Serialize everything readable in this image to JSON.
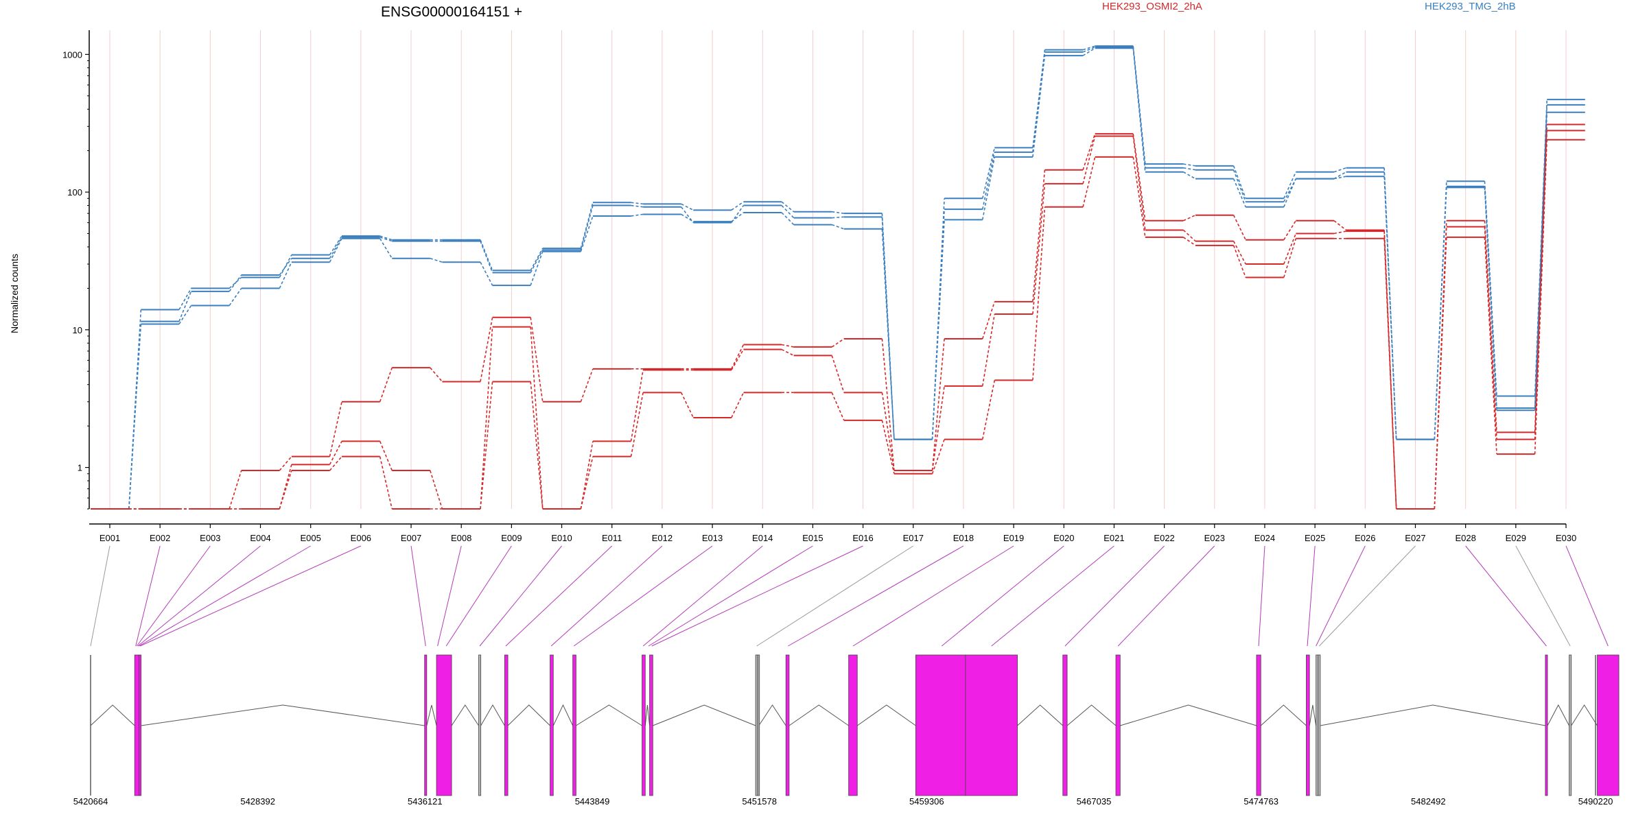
{
  "chart_data": {
    "type": "line",
    "title": "ENSG00000164151 +",
    "ylabel": "Normalized counts",
    "yscale": "log",
    "ylim": [
      0.5,
      1500
    ],
    "yticks": [
      "1",
      "10",
      "100",
      "1000"
    ],
    "ytick_values": [
      1,
      10,
      100,
      1000
    ],
    "categories": [
      "E001",
      "E002",
      "E003",
      "E004",
      "E005",
      "E006",
      "E007",
      "E008",
      "E009",
      "E010",
      "E011",
      "E012",
      "E013",
      "E014",
      "E015",
      "E016",
      "E017",
      "E018",
      "E019",
      "E020",
      "E021",
      "E022",
      "E023",
      "E024",
      "E025",
      "E026",
      "E027",
      "E028",
      "E029",
      "E030"
    ],
    "legend": [
      {
        "name": "HEK293_OSMI2_2hA",
        "color": "#d62728"
      },
      {
        "name": "HEK293_TMG_2hB",
        "color": "#3a7fbf"
      }
    ],
    "series": [
      {
        "group": "HEK293_TMG_2hB",
        "color": "#3a7fbf",
        "values": [
          0.5,
          14,
          20,
          24,
          35,
          48,
          45,
          45,
          27,
          39,
          84,
          82,
          74,
          85,
          72,
          70,
          1.6,
          90,
          210,
          1080,
          1150,
          160,
          155,
          90,
          140,
          150,
          1.6,
          120,
          3.3,
          470
        ]
      },
      {
        "group": "HEK293_TMG_2hB",
        "color": "#3a7fbf",
        "values": [
          0.5,
          11.5,
          19,
          25,
          33,
          47,
          44,
          44,
          26,
          38,
          80,
          78,
          60,
          80,
          65,
          66,
          1.6,
          75,
          195,
          1040,
          1130,
          150,
          145,
          85,
          125,
          140,
          1.6,
          110,
          2.7,
          430
        ]
      },
      {
        "group": "HEK293_TMG_2hB",
        "color": "#3a7fbf",
        "values": [
          0.5,
          11,
          15,
          20,
          31,
          46,
          33,
          31,
          21,
          37,
          67,
          69,
          61,
          71,
          58,
          54,
          1.6,
          63,
          180,
          980,
          1110,
          140,
          125,
          78,
          125,
          130,
          1.6,
          108,
          2.6,
          380
        ]
      },
      {
        "group": "HEK293_OSMI2_2hA",
        "color": "#d62728",
        "values": [
          0.5,
          0.5,
          0.5,
          0.95,
          1.2,
          3,
          5.3,
          4.2,
          12.3,
          3,
          5.2,
          5.2,
          5.2,
          7.8,
          7.5,
          8.6,
          0.95,
          8.6,
          16,
          145,
          265,
          62,
          68,
          45,
          62,
          53,
          0.5,
          62,
          1.8,
          310
        ]
      },
      {
        "group": "HEK293_OSMI2_2hA",
        "color": "#d62728",
        "values": [
          0.5,
          0.5,
          0.5,
          0.5,
          1.05,
          1.55,
          0.95,
          0.5,
          10.5,
          0.5,
          1.55,
          5.1,
          5.1,
          7.2,
          6.5,
          3.5,
          0.95,
          3.9,
          13,
          115,
          255,
          53,
          44,
          30,
          50,
          52,
          0.5,
          56,
          1.6,
          280
        ]
      },
      {
        "group": "HEK293_OSMI2_2hA",
        "color": "#d62728",
        "values": [
          0.5,
          0.5,
          0.5,
          0.5,
          0.95,
          1.2,
          0.5,
          0.5,
          4.2,
          0.5,
          1.2,
          3.5,
          2.3,
          3.5,
          3.5,
          2.2,
          0.9,
          1.6,
          4.3,
          78,
          180,
          47,
          41,
          24,
          46,
          46,
          0.5,
          47,
          1.25,
          240
        ]
      }
    ],
    "gene_model": {
      "coordinate_ticks": [
        "5420664",
        "5428392",
        "5436121",
        "5443849",
        "5451578",
        "5459306",
        "5467035",
        "5474763",
        "5482492",
        "5490220"
      ],
      "coordinate_range": [
        5420664,
        5490220
      ],
      "exons": [
        {
          "start": 5422700,
          "end": 5422900,
          "tested": true
        },
        {
          "start": 5422900,
          "end": 5423000,
          "tested": true
        },
        {
          "start": 5436100,
          "end": 5436200,
          "tested": true
        },
        {
          "start": 5436650,
          "end": 5437350,
          "tested": true
        },
        {
          "start": 5438600,
          "end": 5438700,
          "tested": false
        },
        {
          "start": 5439800,
          "end": 5439950,
          "tested": true
        },
        {
          "start": 5441900,
          "end": 5442050,
          "tested": true
        },
        {
          "start": 5442950,
          "end": 5443100,
          "tested": true
        },
        {
          "start": 5446150,
          "end": 5446300,
          "tested": true
        },
        {
          "start": 5446500,
          "end": 5446650,
          "tested": true
        },
        {
          "start": 5451400,
          "end": 5451500,
          "tested": false
        },
        {
          "start": 5451500,
          "end": 5451550,
          "tested": false
        },
        {
          "start": 5452800,
          "end": 5452950,
          "tested": true
        },
        {
          "start": 5455700,
          "end": 5456100,
          "tested": true
        },
        {
          "start": 5458800,
          "end": 5461100,
          "tested": true
        },
        {
          "start": 5461100,
          "end": 5463500,
          "tested": true
        },
        {
          "start": 5465600,
          "end": 5465800,
          "tested": true
        },
        {
          "start": 5468050,
          "end": 5468250,
          "tested": true
        },
        {
          "start": 5474550,
          "end": 5474750,
          "tested": true
        },
        {
          "start": 5476850,
          "end": 5477000,
          "tested": true
        },
        {
          "start": 5477300,
          "end": 5477400,
          "tested": false
        },
        {
          "start": 5477400,
          "end": 5477500,
          "tested": false
        },
        {
          "start": 5487900,
          "end": 5488000,
          "tested": true
        },
        {
          "start": 5489000,
          "end": 5489100,
          "tested": false
        },
        {
          "start": 5490300,
          "end": 5491300,
          "tested": true
        }
      ],
      "links": [
        {
          "bin": "E001",
          "pos": 5420664,
          "tested": false
        },
        {
          "bin": "E002",
          "pos": 5422750,
          "tested": true
        },
        {
          "bin": "E003",
          "pos": 5422800,
          "tested": true
        },
        {
          "bin": "E004",
          "pos": 5422850,
          "tested": true
        },
        {
          "bin": "E005",
          "pos": 5422900,
          "tested": true
        },
        {
          "bin": "E006",
          "pos": 5422950,
          "tested": true
        },
        {
          "bin": "E007",
          "pos": 5436150,
          "tested": true
        },
        {
          "bin": "E008",
          "pos": 5436700,
          "tested": true
        },
        {
          "bin": "E009",
          "pos": 5437100,
          "tested": true
        },
        {
          "bin": "E010",
          "pos": 5438650,
          "tested": true
        },
        {
          "bin": "E011",
          "pos": 5439850,
          "tested": true
        },
        {
          "bin": "E012",
          "pos": 5441950,
          "tested": true
        },
        {
          "bin": "E013",
          "pos": 5443000,
          "tested": true
        },
        {
          "bin": "E014",
          "pos": 5446200,
          "tested": true
        },
        {
          "bin": "E015",
          "pos": 5446450,
          "tested": true
        },
        {
          "bin": "E016",
          "pos": 5446600,
          "tested": true
        },
        {
          "bin": "E017",
          "pos": 5451450,
          "tested": false
        },
        {
          "bin": "E018",
          "pos": 5452900,
          "tested": true
        },
        {
          "bin": "E019",
          "pos": 5455900,
          "tested": true
        },
        {
          "bin": "E020",
          "pos": 5460000,
          "tested": true
        },
        {
          "bin": "E021",
          "pos": 5462300,
          "tested": true
        },
        {
          "bin": "E022",
          "pos": 5465700,
          "tested": true
        },
        {
          "bin": "E023",
          "pos": 5468150,
          "tested": true
        },
        {
          "bin": "E024",
          "pos": 5474650,
          "tested": true
        },
        {
          "bin": "E025",
          "pos": 5476900,
          "tested": true
        },
        {
          "bin": "E026",
          "pos": 5477300,
          "tested": true
        },
        {
          "bin": "E027",
          "pos": 5477450,
          "tested": false
        },
        {
          "bin": "E028",
          "pos": 5487950,
          "tested": true
        },
        {
          "bin": "E029",
          "pos": 5489050,
          "tested": false
        },
        {
          "bin": "E030",
          "pos": 5490800,
          "tested": true
        }
      ]
    },
    "colors": {
      "group_a": "#d62728",
      "group_b": "#3a7fbf",
      "exon_tested": "#ef1fe6",
      "exon_untested": "#b5b5b5",
      "link_tested": "#b23cb8",
      "link_untested": "#9a9a9a",
      "grid": "#f4cccc"
    }
  }
}
